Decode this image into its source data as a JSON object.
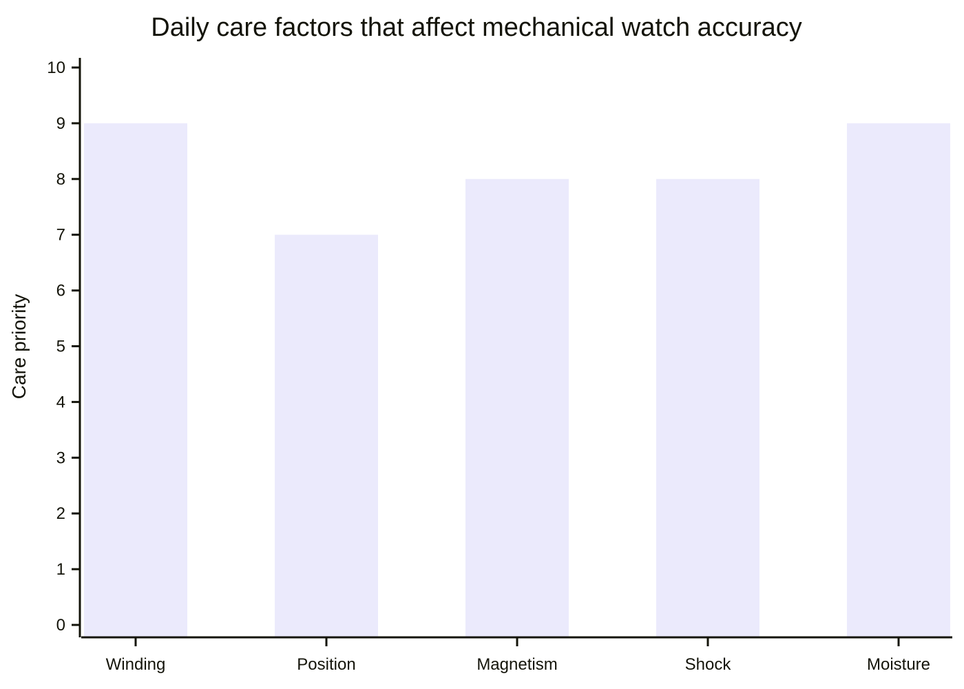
{
  "chart_data": {
    "type": "bar",
    "title": "Daily care factors that affect mechanical watch accuracy",
    "xlabel": "",
    "ylabel": "Care priority",
    "categories": [
      "Winding",
      "Position",
      "Magnetism",
      "Shock",
      "Moisture"
    ],
    "values": [
      9,
      7,
      8,
      8,
      9
    ],
    "ylim": [
      0,
      10
    ],
    "yticks": [
      "0",
      "1",
      "2",
      "3",
      "4",
      "5",
      "6",
      "7",
      "8",
      "9",
      "10"
    ],
    "grid": false,
    "legend": "none",
    "colors": {
      "bar": "#ebeafc",
      "axis": "#14140a",
      "text": "#14140a"
    }
  }
}
